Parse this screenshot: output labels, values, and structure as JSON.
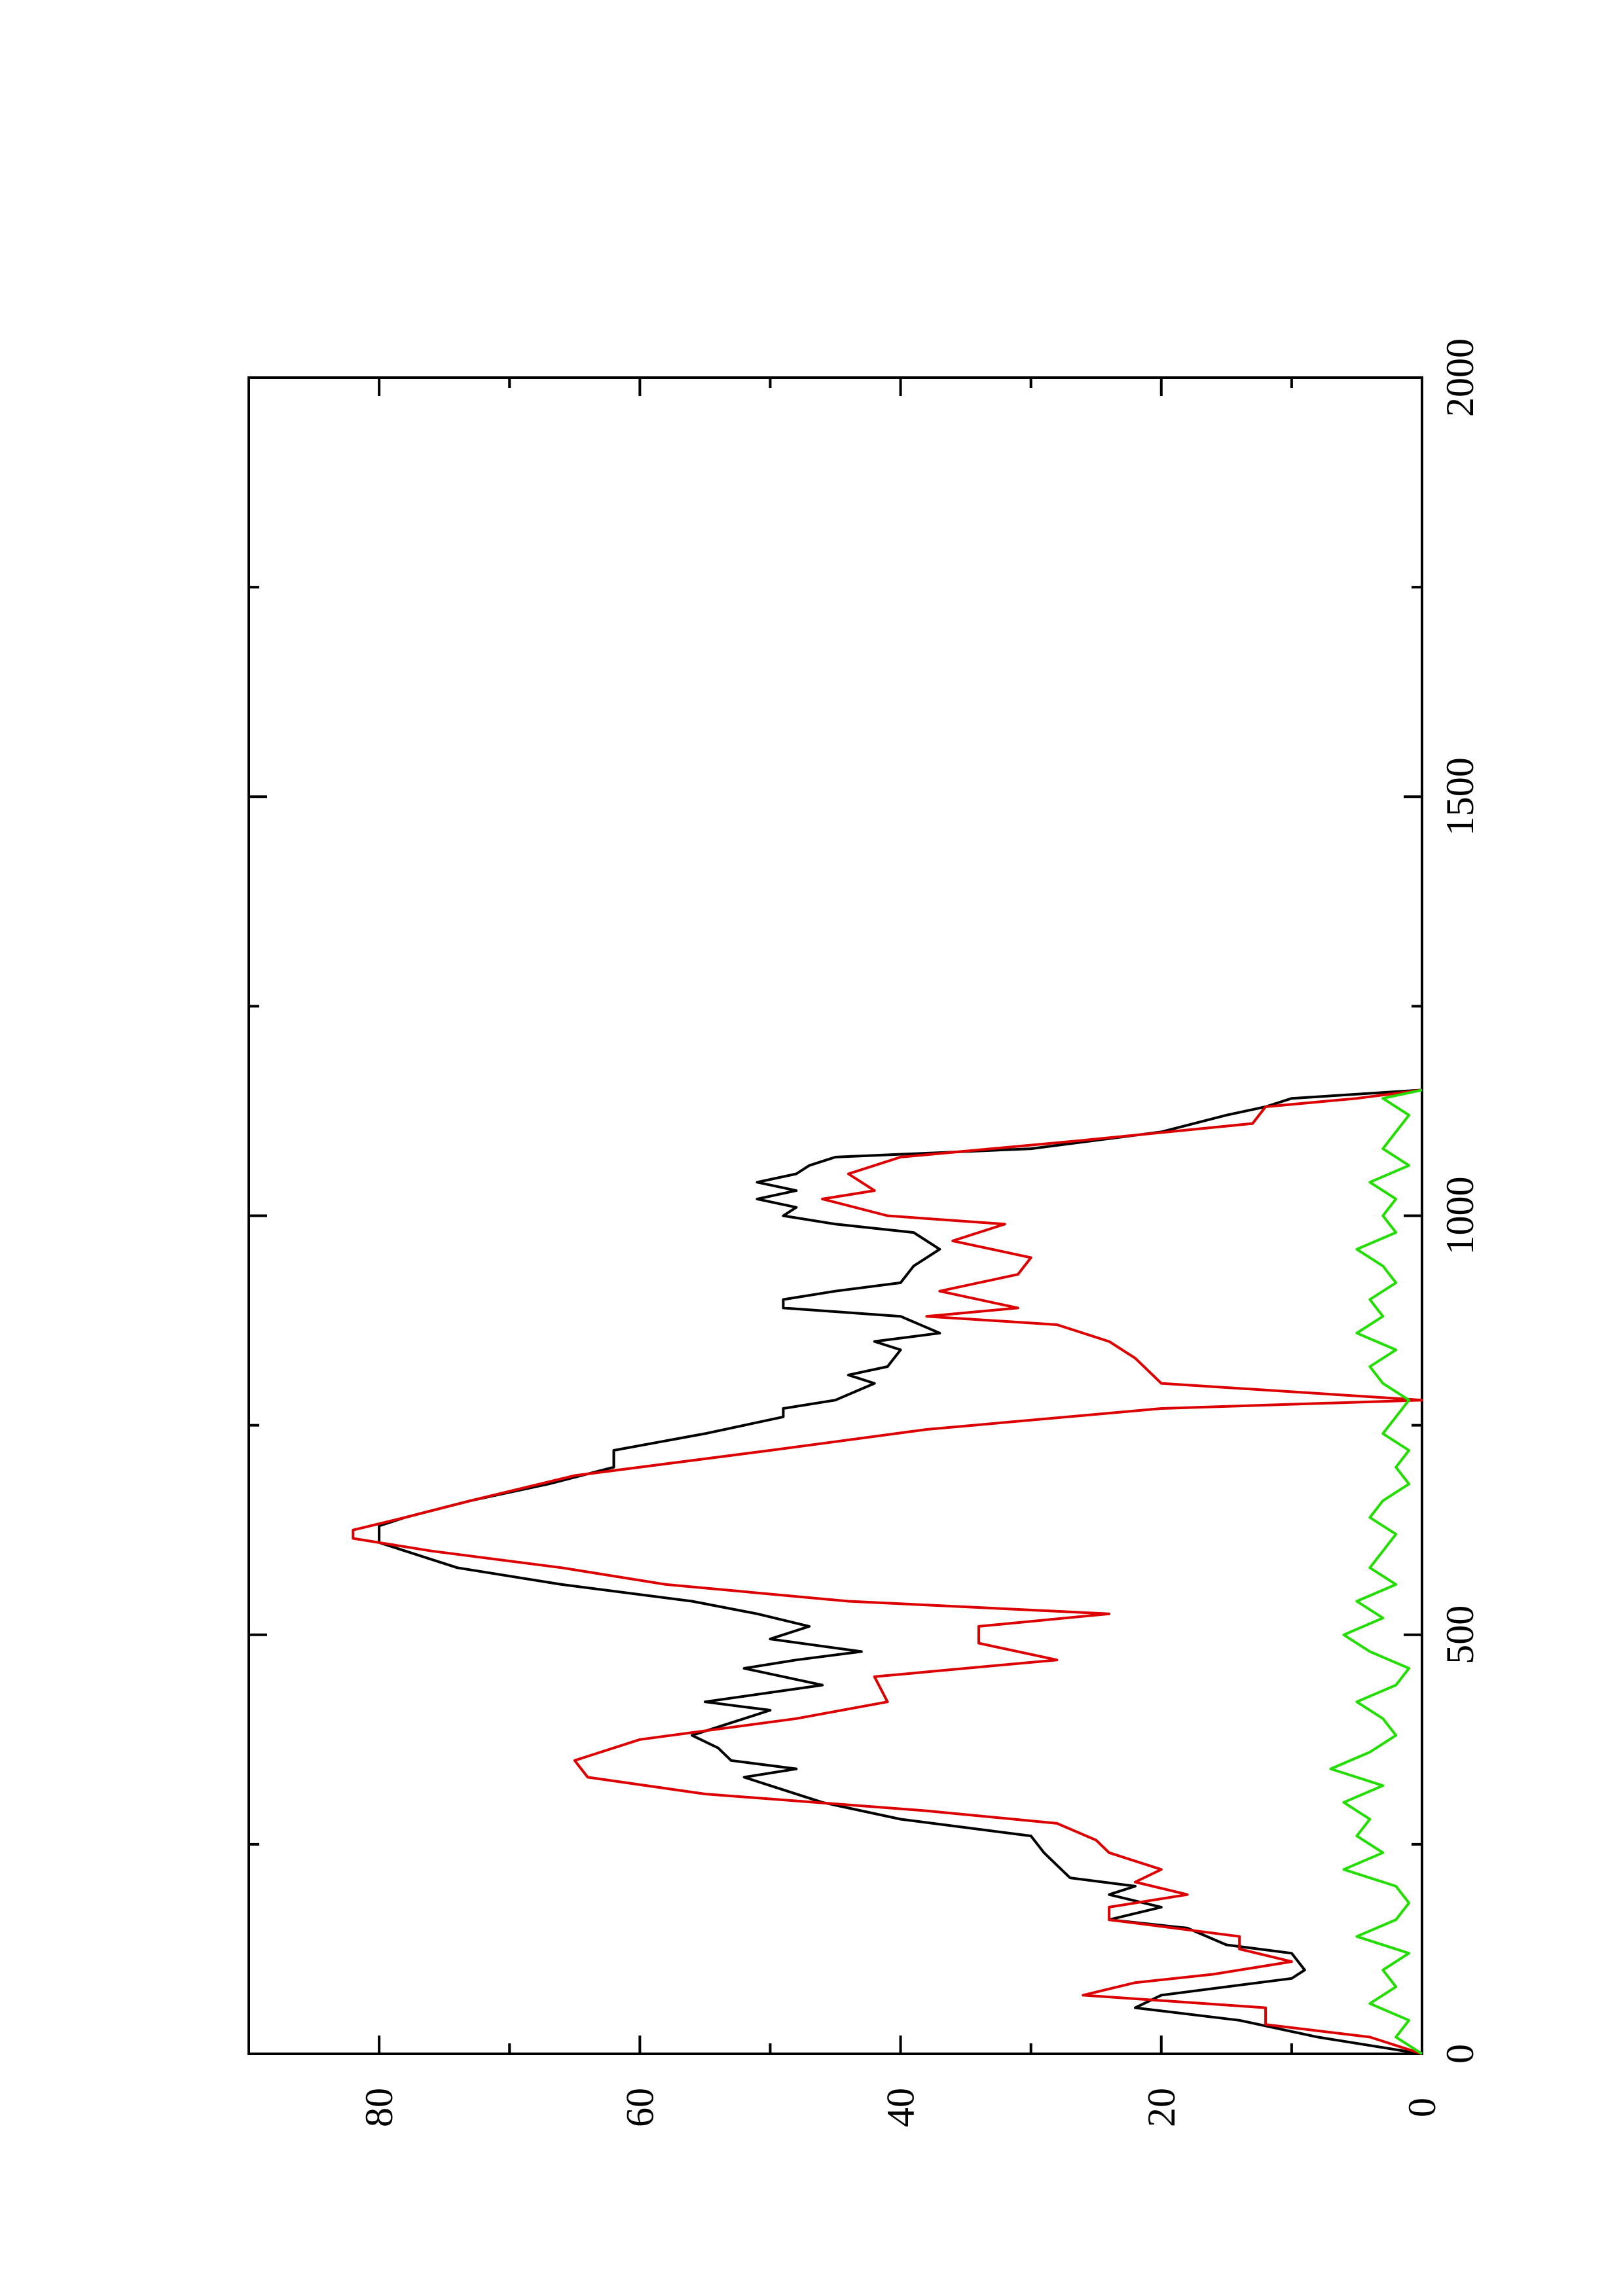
{
  "chart_data": {
    "type": "line",
    "rotated": "90deg-counterclockwise",
    "title": "",
    "xlabel": "",
    "ylabel": "",
    "xlim": [
      0,
      2000
    ],
    "ylim": [
      0,
      90
    ],
    "x_ticks": [
      0,
      500,
      1000,
      1500,
      2000
    ],
    "y_ticks": [
      0,
      20,
      40,
      60,
      80
    ],
    "x_minor_ticks": [
      250,
      750,
      1250,
      1750
    ],
    "y_minor_ticks": [
      10,
      30,
      50,
      70
    ],
    "grid": false,
    "legend": "none",
    "series": [
      {
        "color": "#000000",
        "x": [
          0,
          20,
          40,
          55,
          70,
          90,
          100,
          120,
          130,
          150,
          160,
          175,
          190,
          200,
          210,
          225,
          240,
          260,
          280,
          300,
          320,
          330,
          340,
          350,
          365,
          380,
          395,
          410,
          420,
          440,
          460,
          470,
          480,
          495,
          510,
          525,
          540,
          560,
          580,
          600,
          610,
          620,
          630,
          640,
          660,
          680,
          700,
          720,
          740,
          760,
          770,
          780,
          800,
          810,
          820,
          840,
          850,
          860,
          880,
          890,
          900,
          910,
          920,
          940,
          960,
          980,
          990,
          1000,
          1010,
          1020,
          1030,
          1040,
          1050,
          1060,
          1070,
          1080,
          1100,
          1120,
          1130,
          1140,
          1150
        ],
        "y": [
          0,
          8,
          14,
          22,
          20,
          10,
          9,
          10,
          15,
          18,
          24,
          20,
          24,
          22,
          27,
          28,
          29,
          30,
          40,
          46,
          50,
          52,
          48,
          53,
          54,
          56,
          53,
          50,
          55,
          46,
          52,
          48,
          43,
          50,
          47,
          51,
          56,
          66,
          74,
          78,
          80,
          80,
          80,
          78,
          73,
          67,
          62,
          62,
          55,
          49,
          49,
          45,
          42,
          44,
          41,
          40,
          42,
          37,
          40,
          49,
          49,
          45,
          40,
          39,
          37,
          39,
          45,
          49,
          48,
          51,
          48,
          51,
          48,
          47,
          45,
          30,
          20,
          15,
          12,
          10,
          0
        ]
      },
      {
        "color": "#dd0000",
        "x": [
          0,
          20,
          35,
          55,
          70,
          85,
          95,
          110,
          125,
          140,
          160,
          175,
          190,
          205,
          220,
          240,
          255,
          275,
          290,
          310,
          330,
          350,
          375,
          400,
          420,
          450,
          470,
          490,
          510,
          525,
          540,
          560,
          580,
          600,
          615,
          625,
          640,
          660,
          690,
          720,
          745,
          770,
          780,
          800,
          830,
          850,
          870,
          880,
          890,
          910,
          930,
          950,
          970,
          990,
          1000,
          1020,
          1030,
          1050,
          1070,
          1090,
          1110,
          1130,
          1140,
          1150
        ],
        "y": [
          0,
          4,
          12,
          12,
          26,
          22,
          16,
          10,
          14,
          14,
          24,
          24,
          18,
          22,
          20,
          24,
          25,
          28,
          38,
          55,
          64,
          65,
          60,
          48,
          41,
          42,
          28,
          34,
          34,
          24,
          44,
          58,
          66,
          76,
          82,
          82,
          78,
          73,
          65,
          50,
          38,
          20,
          0,
          20,
          22,
          24,
          28,
          38,
          31,
          37,
          31,
          30,
          36,
          32,
          41,
          46,
          42,
          44,
          40,
          26,
          13,
          12,
          5,
          0
        ]
      },
      {
        "color": "#22dd00",
        "x": [
          0,
          20,
          40,
          60,
          80,
          100,
          120,
          140,
          160,
          180,
          200,
          220,
          240,
          260,
          280,
          300,
          320,
          340,
          360,
          380,
          400,
          420,
          440,
          460,
          480,
          500,
          520,
          540,
          560,
          580,
          600,
          620,
          640,
          660,
          680,
          700,
          720,
          740,
          760,
          780,
          800,
          820,
          840,
          860,
          880,
          900,
          920,
          940,
          960,
          980,
          1000,
          1020,
          1040,
          1060,
          1080,
          1100,
          1120,
          1140,
          1150
        ],
        "y": [
          0,
          2,
          1,
          4,
          2,
          3,
          1,
          5,
          2,
          1,
          2,
          6,
          3,
          5,
          4,
          6,
          3,
          7,
          4,
          2,
          3,
          5,
          2,
          1,
          4,
          6,
          3,
          5,
          2,
          4,
          3,
          2,
          4,
          3,
          1,
          2,
          1,
          3,
          2,
          1,
          3,
          4,
          2,
          5,
          3,
          4,
          2,
          3,
          5,
          2,
          3,
          2,
          4,
          1,
          3,
          2,
          1,
          3,
          0
        ]
      }
    ]
  }
}
